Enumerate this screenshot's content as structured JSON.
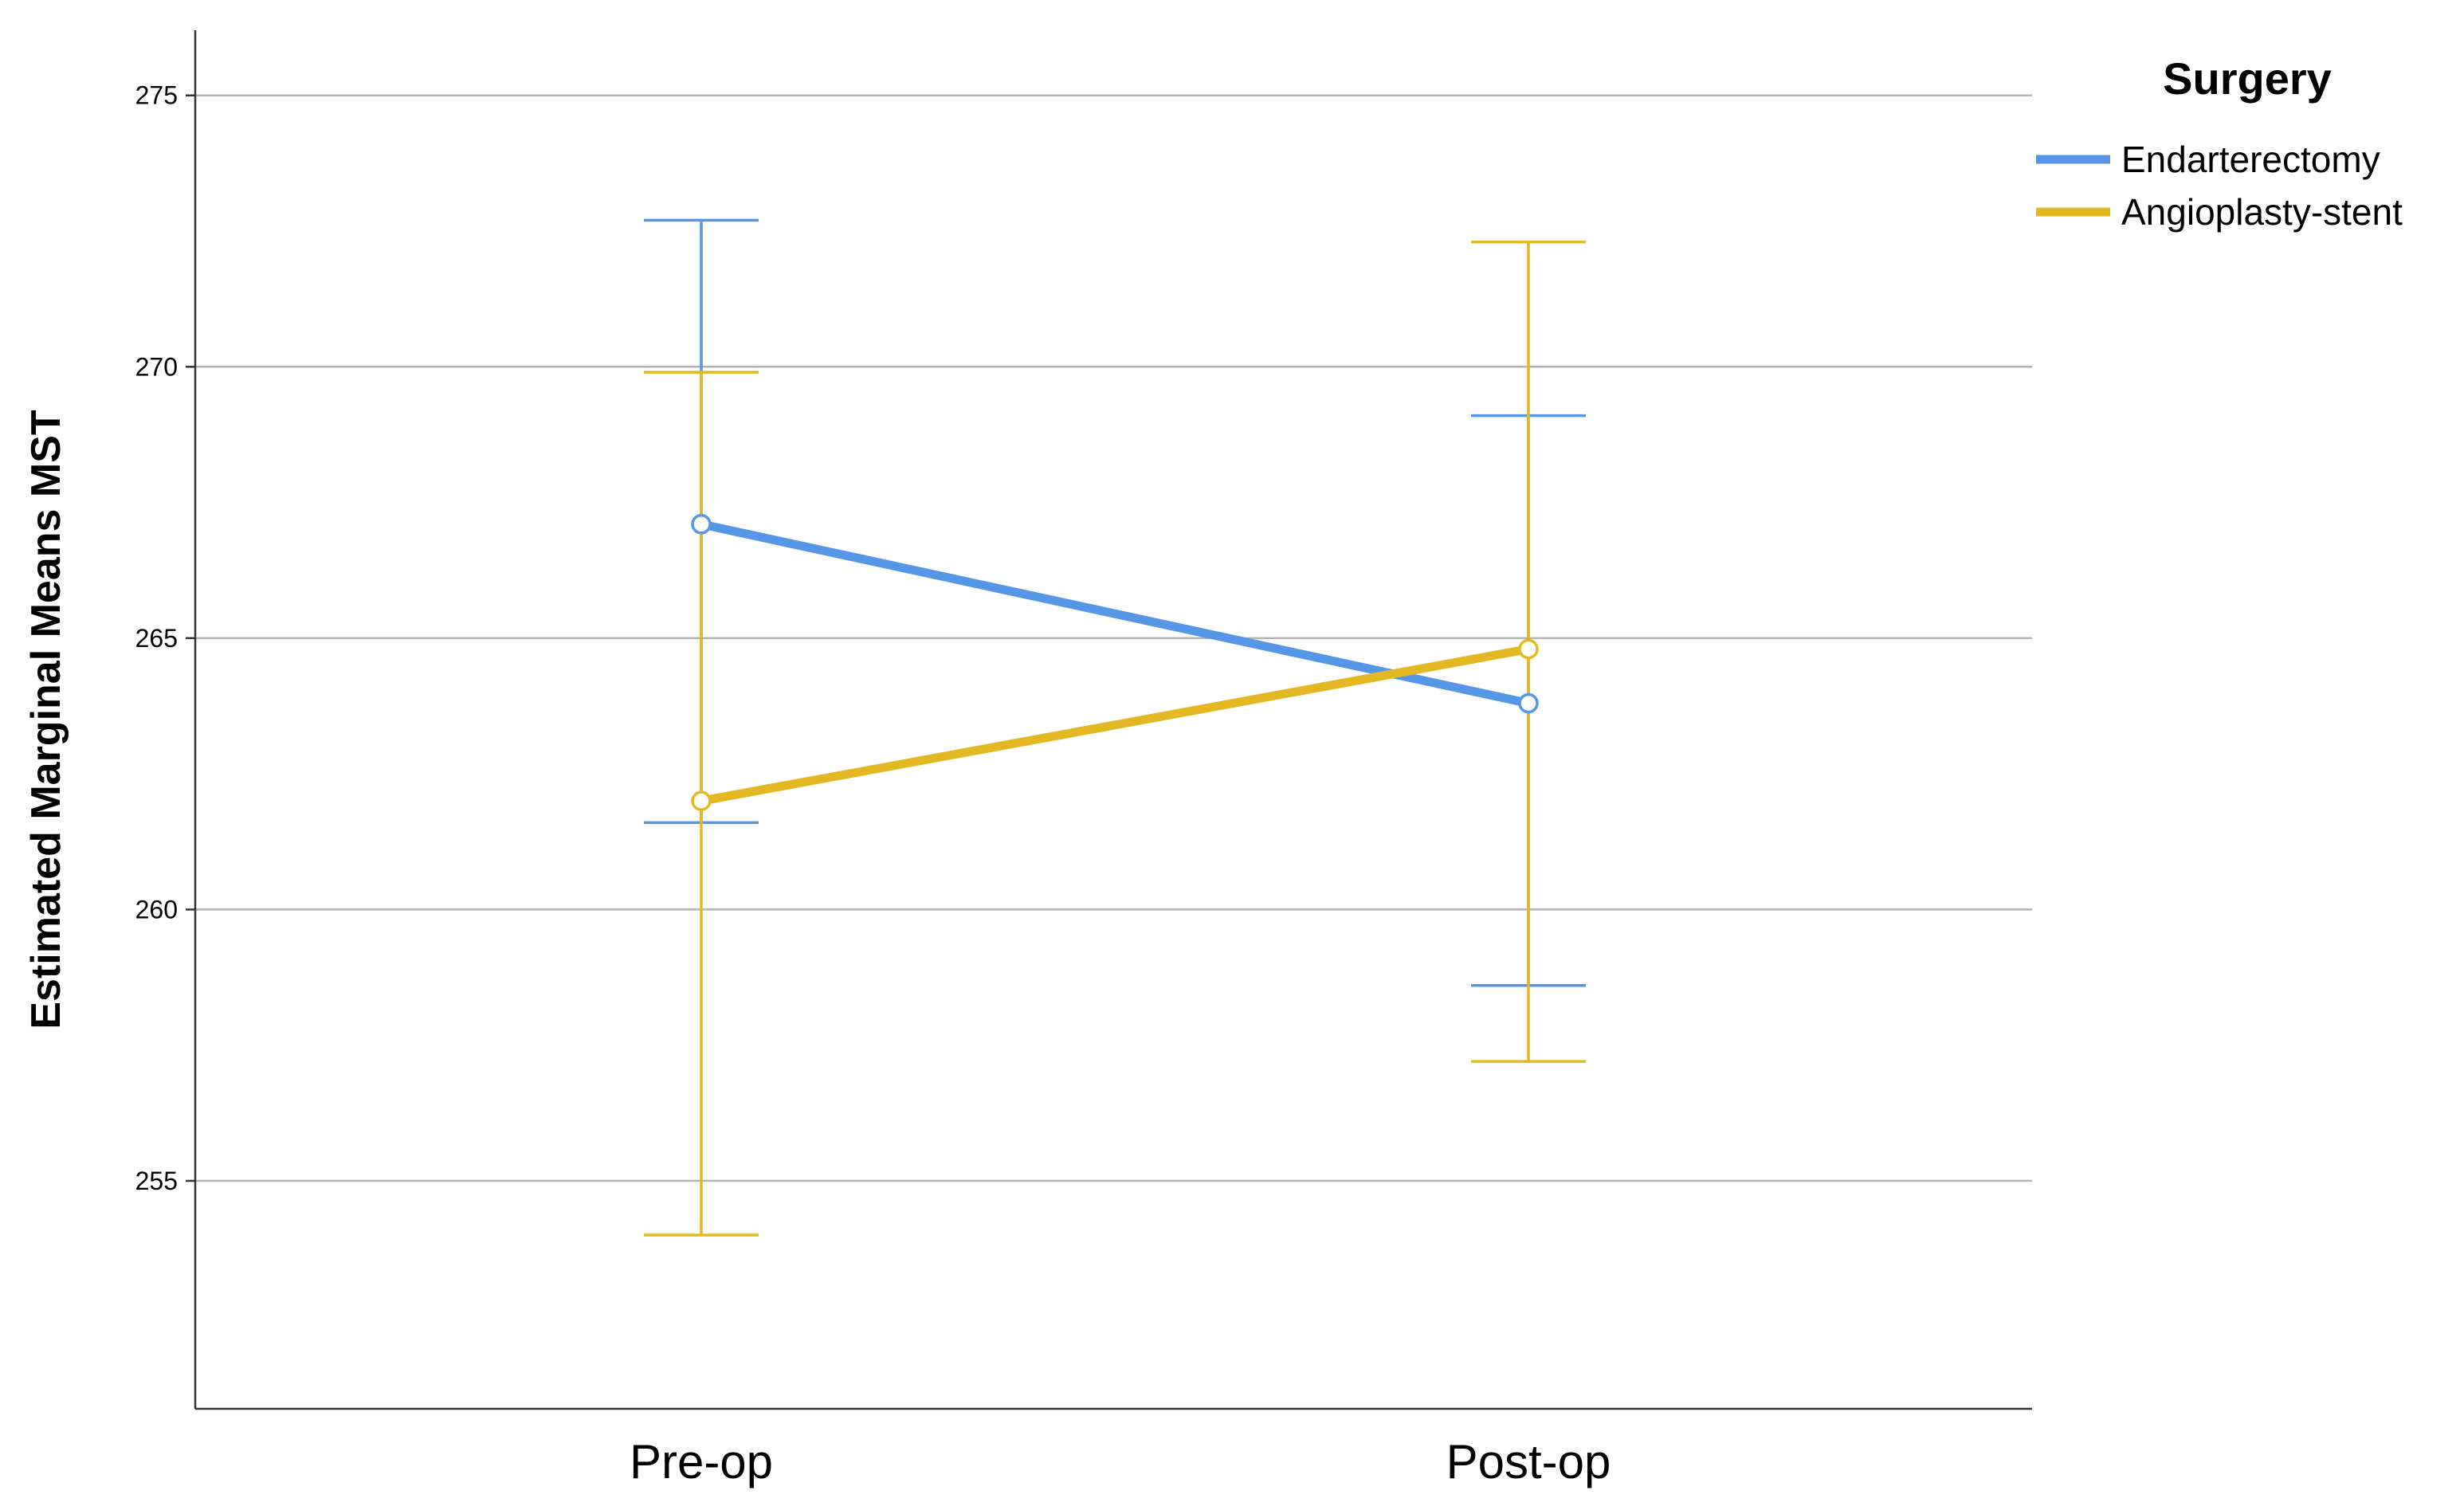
{
  "chart_data": {
    "type": "line",
    "ylabel": "Estimated Marginal Means MST",
    "xlabel": "",
    "categories": [
      "Pre-op",
      "Post-op"
    ],
    "ylim": [
      250.8,
      276.2
    ],
    "yticks": [
      255,
      260,
      265,
      270,
      275
    ],
    "grid": true,
    "legend": {
      "title": "Surgery",
      "position": "top-right"
    },
    "series": [
      {
        "name": "Endarterectomy",
        "color": "#5596e6",
        "values": [
          267.1,
          263.8
        ],
        "error_low": [
          261.6,
          258.6
        ],
        "error_high": [
          272.7,
          269.1
        ]
      },
      {
        "name": "Angioplasty-stent",
        "color": "#e4b823",
        "values": [
          262.0,
          264.8
        ],
        "error_low": [
          254.0,
          257.2
        ],
        "error_high": [
          269.9,
          272.3
        ]
      }
    ]
  }
}
